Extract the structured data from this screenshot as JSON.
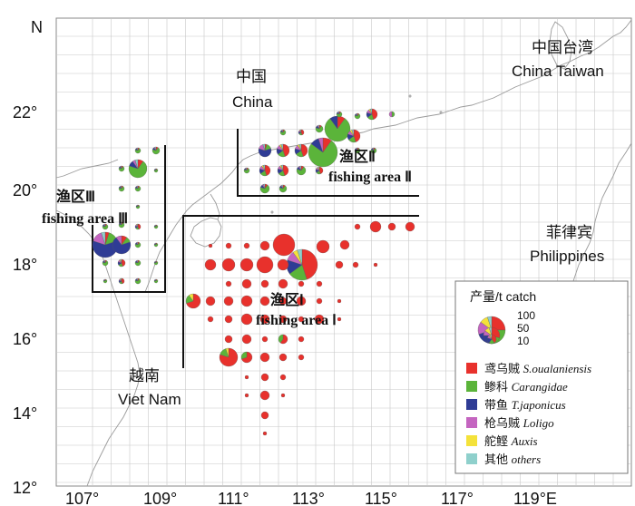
{
  "north_label": "N",
  "lat_ticks": [
    "22°",
    "20°",
    "18°",
    "16°",
    "14°",
    "12°"
  ],
  "lon_ticks": [
    "107°",
    "109°",
    "111°",
    "113°",
    "115°",
    "117°",
    "119°E"
  ],
  "places": {
    "china_cn": "中国",
    "china_en": "China",
    "taiwan_cn": "中国台湾",
    "taiwan_en": "China Taiwan",
    "philippines_cn": "菲律宾",
    "philippines_en": "Philippines",
    "vietnam_cn": "越南",
    "vietnam_en": "Viet Nam"
  },
  "areas": {
    "area1_cn": "渔区Ⅰ",
    "area1_en": "fishing area Ⅰ",
    "area2_cn": "渔区Ⅱ",
    "area2_en": "fishing area Ⅱ",
    "area3_cn": "渔区Ⅲ",
    "area3_en": "fishing area Ⅲ"
  },
  "legend": {
    "title": "产量/t  catch",
    "size_labels": [
      "100",
      "50",
      "10"
    ],
    "items": [
      {
        "cn": "鸢乌贼",
        "latin": "S.oualaniensis",
        "color": "#e8312c"
      },
      {
        "cn": "鲹科",
        "latin": "Carangidae",
        "color": "#5bb43a"
      },
      {
        "cn": "带鱼",
        "latin": "T.japonicus",
        "color": "#2f3c95"
      },
      {
        "cn": "枪乌贼",
        "latin": "Loligo",
        "color": "#c465c0"
      },
      {
        "cn": "舵鲣",
        "latin": "Auxis",
        "color": "#f4e23a"
      },
      {
        "cn": "其他",
        "latin": "others",
        "color": "#8fd0cc"
      }
    ]
  }
}
